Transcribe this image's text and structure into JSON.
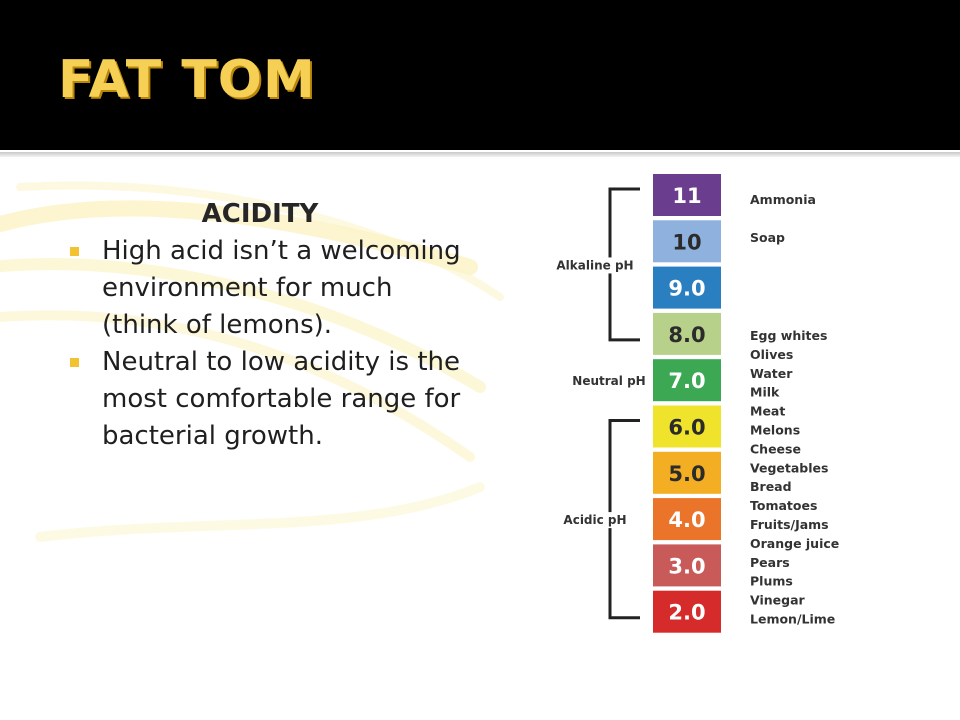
{
  "slide": {
    "title": "FAT TOM",
    "heading": "ACIDITY",
    "bullets": [
      {
        "text": "High acid isn’t a welcoming environment for much (think of lemons)."
      },
      {
        "text": "Neutral to low acidity is the most comfortable range for bacterial growth."
      }
    ]
  },
  "colors": {
    "title_bar": "#000000",
    "title_text": "#f6cf55",
    "bullet": "#f2c230"
  },
  "chart_data": {
    "type": "table",
    "levels": [
      {
        "label": "11",
        "color": "#6a3d8f"
      },
      {
        "label": "10",
        "color": "#8fb1de"
      },
      {
        "label": "9.0",
        "color": "#2a7fc1"
      },
      {
        "label": "8.0",
        "color": "#b7d18b"
      },
      {
        "label": "7.0",
        "color": "#3ca853"
      },
      {
        "label": "6.0",
        "color": "#f0e32c"
      },
      {
        "label": "5.0",
        "color": "#f3ae24"
      },
      {
        "label": "4.0",
        "color": "#e9742a"
      },
      {
        "label": "3.0",
        "color": "#c95a5a"
      },
      {
        "label": "2.0",
        "color": "#d52b2b"
      }
    ],
    "groups": [
      {
        "label": "Alkaline pH",
        "from": 0,
        "to": 3
      },
      {
        "label": "Neutral pH",
        "at": 4
      },
      {
        "label": "Acidic pH",
        "from": 5,
        "to": 9
      }
    ],
    "examples": [
      "Ammonia",
      "Soap",
      "Egg whites",
      "Olives",
      "Water",
      "Milk",
      "Meat",
      "Melons",
      "Cheese",
      "Vegetables",
      "Bread",
      "Tomatoes",
      "Fruits/Jams",
      "Orange juice",
      "Pears",
      "Plums",
      "Vinegar",
      "Lemon/Lime"
    ]
  }
}
